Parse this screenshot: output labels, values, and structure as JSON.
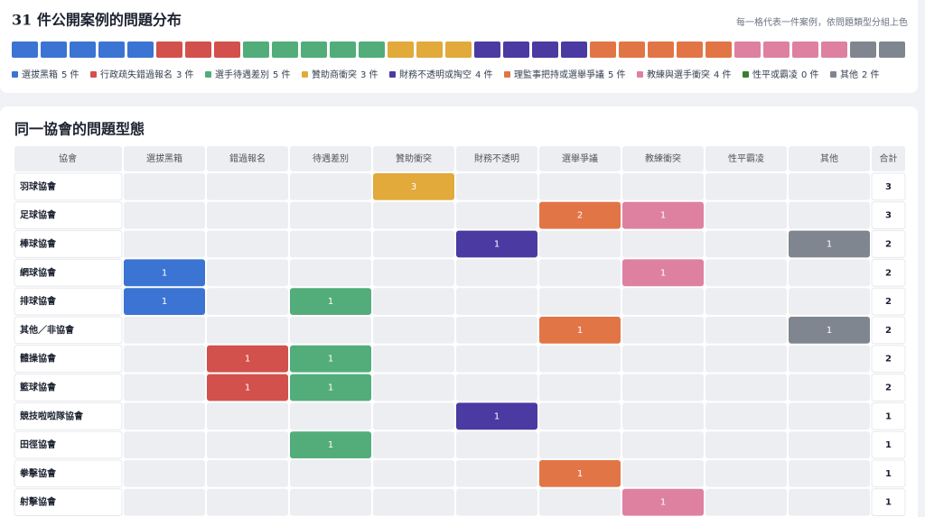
{
  "chart_data": [
    {
      "type": "waffle",
      "title": "31 件公開案例的問題分布",
      "subtitle": "每一格代表一件案例，依問題類型分組上色",
      "categories": [
        "選拔黑箱",
        "行政疏失錯過報名",
        "選手待遇差別",
        "贊助商衝突",
        "財務不透明或掏空",
        "理監事把持或選舉爭議",
        "教練與選手衝突",
        "性平或霸凌",
        "其他"
      ],
      "values": [
        5,
        3,
        5,
        3,
        4,
        5,
        4,
        0,
        2
      ],
      "value_labels": [
        "5 件",
        "3 件",
        "5 件",
        "3 件",
        "4 件",
        "5 件",
        "4 件",
        "0 件",
        "2 件"
      ],
      "colors": [
        "#3b74d2",
        "#d2514c",
        "#52ad7b",
        "#e2a93b",
        "#4a3aa1",
        "#e27546",
        "#de81a1",
        "#3b7d2c",
        "#80868f"
      ]
    },
    {
      "type": "heatmap",
      "title": "同一協會的問題型態",
      "row_header": "協會",
      "total_header": "合計",
      "columns": [
        "選拔黑箱",
        "錯過報名",
        "待遇差別",
        "贊助衝突",
        "財務不透明",
        "選舉爭議",
        "教練衝突",
        "性平霸凌",
        "其他"
      ],
      "rows": [
        "羽球協會",
        "足球協會",
        "棒球協會",
        "網球協會",
        "排球協會",
        "其他／非協會",
        "體操協會",
        "籃球協會",
        "競技啦啦隊協會",
        "田徑協會",
        "拳擊協會",
        "射擊協會"
      ],
      "values": [
        [
          null,
          null,
          null,
          3,
          null,
          null,
          null,
          null,
          null
        ],
        [
          null,
          null,
          null,
          null,
          null,
          2,
          1,
          null,
          null
        ],
        [
          null,
          null,
          null,
          null,
          1,
          null,
          null,
          null,
          1
        ],
        [
          1,
          null,
          null,
          null,
          null,
          null,
          1,
          null,
          null
        ],
        [
          1,
          null,
          1,
          null,
          null,
          null,
          null,
          null,
          null
        ],
        [
          null,
          null,
          null,
          null,
          null,
          1,
          null,
          null,
          1
        ],
        [
          null,
          1,
          1,
          null,
          null,
          null,
          null,
          null,
          null
        ],
        [
          null,
          1,
          1,
          null,
          null,
          null,
          null,
          null,
          null
        ],
        [
          null,
          null,
          null,
          null,
          1,
          null,
          null,
          null,
          null
        ],
        [
          null,
          null,
          1,
          null,
          null,
          null,
          null,
          null,
          null
        ],
        [
          null,
          null,
          null,
          null,
          null,
          1,
          null,
          null,
          null
        ],
        [
          null,
          null,
          null,
          null,
          null,
          null,
          1,
          null,
          null
        ]
      ],
      "totals": [
        3,
        3,
        2,
        2,
        2,
        2,
        2,
        2,
        1,
        1,
        1,
        1
      ]
    }
  ]
}
